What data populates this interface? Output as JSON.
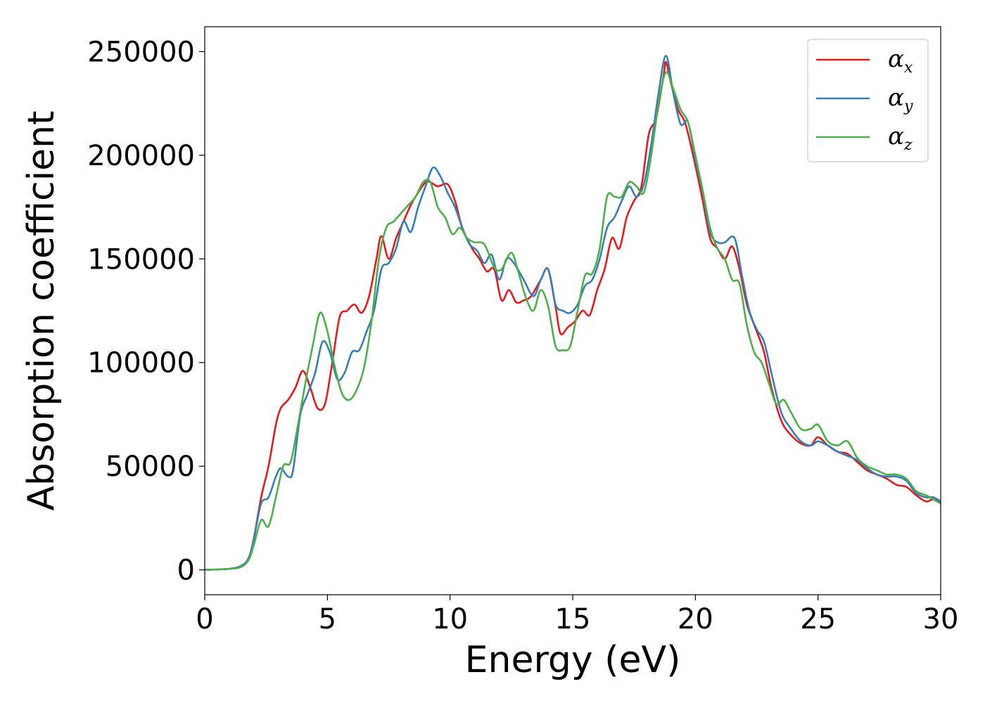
{
  "chart_data": {
    "type": "line",
    "xlabel": "Energy (eV)",
    "ylabel": "Absorption coefficient",
    "xlim": [
      0,
      30
    ],
    "ylim": [
      -12000,
      262000
    ],
    "xticks": [
      0,
      5,
      10,
      15,
      20,
      25,
      30
    ],
    "yticks": [
      0,
      50000,
      100000,
      150000,
      200000,
      250000
    ],
    "grid": false,
    "legend_position": "top-right",
    "series": [
      {
        "name": "α_x",
        "symbol": "α",
        "subscript": "x",
        "color": "#e41a1c",
        "points": [
          [
            0,
            0
          ],
          [
            1,
            500
          ],
          [
            1.5,
            2000
          ],
          [
            1.8,
            6000
          ],
          [
            2,
            15000
          ],
          [
            2.3,
            35000
          ],
          [
            2.6,
            50000
          ],
          [
            2.9,
            70000
          ],
          [
            3.1,
            78000
          ],
          [
            3.4,
            82000
          ],
          [
            3.7,
            88000
          ],
          [
            4,
            96000
          ],
          [
            4.3,
            88000
          ],
          [
            4.6,
            78000
          ],
          [
            4.9,
            80000
          ],
          [
            5.2,
            100000
          ],
          [
            5.5,
            122000
          ],
          [
            5.8,
            125000
          ],
          [
            6.1,
            128000
          ],
          [
            6.4,
            124000
          ],
          [
            6.7,
            132000
          ],
          [
            7,
            150000
          ],
          [
            7.2,
            161000
          ],
          [
            7.5,
            150000
          ],
          [
            7.8,
            160000
          ],
          [
            8.1,
            168000
          ],
          [
            8.4,
            176000
          ],
          [
            8.7,
            182000
          ],
          [
            9,
            187000
          ],
          [
            9.2,
            187000
          ],
          [
            9.5,
            185000
          ],
          [
            9.9,
            186000
          ],
          [
            10.2,
            178000
          ],
          [
            10.5,
            165000
          ],
          [
            10.9,
            155000
          ],
          [
            11.2,
            150000
          ],
          [
            11.5,
            144000
          ],
          [
            11.8,
            145000
          ],
          [
            12.1,
            130000
          ],
          [
            12.4,
            135000
          ],
          [
            12.7,
            129000
          ],
          [
            13,
            130000
          ],
          [
            13.3,
            132000
          ],
          [
            13.7,
            140000
          ],
          [
            14,
            145000
          ],
          [
            14.3,
            127000
          ],
          [
            14.5,
            114000
          ],
          [
            14.8,
            117000
          ],
          [
            15.1,
            120000
          ],
          [
            15.4,
            125000
          ],
          [
            15.7,
            123000
          ],
          [
            16,
            135000
          ],
          [
            16.3,
            145000
          ],
          [
            16.6,
            160000
          ],
          [
            16.9,
            155000
          ],
          [
            17.2,
            170000
          ],
          [
            17.5,
            178000
          ],
          [
            17.8,
            185000
          ],
          [
            18.1,
            210000
          ],
          [
            18.4,
            218000
          ],
          [
            18.7,
            238000
          ],
          [
            18.8,
            245000
          ],
          [
            19,
            235000
          ],
          [
            19.3,
            222000
          ],
          [
            19.6,
            215000
          ],
          [
            20,
            195000
          ],
          [
            20.3,
            178000
          ],
          [
            20.6,
            160000
          ],
          [
            20.9,
            155000
          ],
          [
            21.2,
            150000
          ],
          [
            21.5,
            156000
          ],
          [
            21.8,
            145000
          ],
          [
            22.1,
            128000
          ],
          [
            22.5,
            115000
          ],
          [
            22.8,
            105000
          ],
          [
            23.1,
            88000
          ],
          [
            23.5,
            72000
          ],
          [
            23.9,
            65000
          ],
          [
            24.3,
            61000
          ],
          [
            24.7,
            60000
          ],
          [
            25,
            64000
          ],
          [
            25.4,
            60000
          ],
          [
            25.8,
            57000
          ],
          [
            26.2,
            56000
          ],
          [
            26.6,
            52000
          ],
          [
            27,
            48000
          ],
          [
            27.4,
            46000
          ],
          [
            27.8,
            44000
          ],
          [
            28.2,
            41000
          ],
          [
            28.6,
            40000
          ],
          [
            29,
            36000
          ],
          [
            29.4,
            33000
          ],
          [
            29.7,
            34000
          ],
          [
            30,
            32000
          ]
        ]
      },
      {
        "name": "α_y",
        "symbol": "α",
        "subscript": "y",
        "color": "#377eb8",
        "points": [
          [
            0,
            0
          ],
          [
            1,
            500
          ],
          [
            1.5,
            2000
          ],
          [
            1.8,
            6000
          ],
          [
            2,
            15000
          ],
          [
            2.3,
            32000
          ],
          [
            2.6,
            35000
          ],
          [
            2.9,
            45000
          ],
          [
            3.1,
            49000
          ],
          [
            3.4,
            45000
          ],
          [
            3.6,
            48000
          ],
          [
            3.9,
            75000
          ],
          [
            4.2,
            85000
          ],
          [
            4.5,
            95000
          ],
          [
            4.8,
            110000
          ],
          [
            5.1,
            105000
          ],
          [
            5.4,
            92000
          ],
          [
            5.7,
            95000
          ],
          [
            6,
            105000
          ],
          [
            6.3,
            106000
          ],
          [
            6.6,
            115000
          ],
          [
            6.9,
            125000
          ],
          [
            7.2,
            145000
          ],
          [
            7.5,
            148000
          ],
          [
            7.8,
            155000
          ],
          [
            8.1,
            168000
          ],
          [
            8.4,
            163000
          ],
          [
            8.7,
            175000
          ],
          [
            9,
            185000
          ],
          [
            9.3,
            194000
          ],
          [
            9.6,
            190000
          ],
          [
            9.9,
            182000
          ],
          [
            10.2,
            175000
          ],
          [
            10.5,
            165000
          ],
          [
            10.8,
            157000
          ],
          [
            11.1,
            154000
          ],
          [
            11.4,
            148000
          ],
          [
            11.7,
            152000
          ],
          [
            12,
            140000
          ],
          [
            12.3,
            150000
          ],
          [
            12.6,
            148000
          ],
          [
            13,
            140000
          ],
          [
            13.4,
            132000
          ],
          [
            13.7,
            140000
          ],
          [
            14,
            145000
          ],
          [
            14.3,
            128000
          ],
          [
            14.6,
            125000
          ],
          [
            14.9,
            124000
          ],
          [
            15.2,
            128000
          ],
          [
            15.5,
            137000
          ],
          [
            15.8,
            140000
          ],
          [
            16.1,
            150000
          ],
          [
            16.4,
            165000
          ],
          [
            16.7,
            170000
          ],
          [
            17,
            178000
          ],
          [
            17.3,
            185000
          ],
          [
            17.6,
            180000
          ],
          [
            17.9,
            186000
          ],
          [
            18.2,
            205000
          ],
          [
            18.5,
            230000
          ],
          [
            18.8,
            248000
          ],
          [
            19.1,
            230000
          ],
          [
            19.4,
            215000
          ],
          [
            19.7,
            216000
          ],
          [
            20,
            198000
          ],
          [
            20.3,
            182000
          ],
          [
            20.6,
            163000
          ],
          [
            20.9,
            158000
          ],
          [
            21.2,
            158000
          ],
          [
            21.6,
            160000
          ],
          [
            21.9,
            142000
          ],
          [
            22.2,
            125000
          ],
          [
            22.5,
            116000
          ],
          [
            22.8,
            110000
          ],
          [
            23.1,
            95000
          ],
          [
            23.5,
            76000
          ],
          [
            23.9,
            68000
          ],
          [
            24.3,
            62000
          ],
          [
            24.7,
            60000
          ],
          [
            25,
            62000
          ],
          [
            25.4,
            60000
          ],
          [
            25.8,
            57000
          ],
          [
            26.2,
            55000
          ],
          [
            26.6,
            53000
          ],
          [
            27,
            49000
          ],
          [
            27.4,
            46000
          ],
          [
            27.8,
            45000
          ],
          [
            28.2,
            45000
          ],
          [
            28.6,
            43000
          ],
          [
            29,
            37000
          ],
          [
            29.4,
            35000
          ],
          [
            29.7,
            35000
          ],
          [
            30,
            33000
          ]
        ]
      },
      {
        "name": "α_z",
        "symbol": "α",
        "subscript": "z",
        "color": "#4daf4a",
        "points": [
          [
            0,
            0
          ],
          [
            1,
            500
          ],
          [
            1.5,
            1500
          ],
          [
            1.8,
            5000
          ],
          [
            2,
            12000
          ],
          [
            2.3,
            24000
          ],
          [
            2.6,
            21000
          ],
          [
            2.9,
            35000
          ],
          [
            3.2,
            50000
          ],
          [
            3.5,
            52000
          ],
          [
            3.8,
            70000
          ],
          [
            4.1,
            90000
          ],
          [
            4.4,
            108000
          ],
          [
            4.7,
            124000
          ],
          [
            5,
            115000
          ],
          [
            5.3,
            98000
          ],
          [
            5.6,
            85000
          ],
          [
            5.9,
            82000
          ],
          [
            6.2,
            87000
          ],
          [
            6.5,
            98000
          ],
          [
            6.8,
            120000
          ],
          [
            7.1,
            150000
          ],
          [
            7.4,
            165000
          ],
          [
            7.7,
            168000
          ],
          [
            8,
            172000
          ],
          [
            8.3,
            176000
          ],
          [
            8.6,
            180000
          ],
          [
            8.9,
            187000
          ],
          [
            9.2,
            187000
          ],
          [
            9.5,
            175000
          ],
          [
            9.8,
            170000
          ],
          [
            10.1,
            162000
          ],
          [
            10.4,
            165000
          ],
          [
            10.7,
            160000
          ],
          [
            11,
            158000
          ],
          [
            11.4,
            157000
          ],
          [
            11.8,
            146000
          ],
          [
            12.1,
            145000
          ],
          [
            12.5,
            153000
          ],
          [
            12.8,
            143000
          ],
          [
            13.1,
            131000
          ],
          [
            13.4,
            125000
          ],
          [
            13.7,
            135000
          ],
          [
            14,
            127000
          ],
          [
            14.3,
            108000
          ],
          [
            14.6,
            106000
          ],
          [
            14.9,
            108000
          ],
          [
            15.2,
            125000
          ],
          [
            15.5,
            142000
          ],
          [
            15.8,
            143000
          ],
          [
            16.1,
            155000
          ],
          [
            16.4,
            180000
          ],
          [
            16.7,
            180000
          ],
          [
            17,
            180000
          ],
          [
            17.3,
            187000
          ],
          [
            17.6,
            185000
          ],
          [
            17.9,
            182000
          ],
          [
            18.2,
            200000
          ],
          [
            18.5,
            225000
          ],
          [
            18.8,
            240000
          ],
          [
            19.1,
            232000
          ],
          [
            19.4,
            222000
          ],
          [
            19.7,
            216000
          ],
          [
            20,
            200000
          ],
          [
            20.3,
            183000
          ],
          [
            20.6,
            165000
          ],
          [
            20.9,
            155000
          ],
          [
            21.2,
            150000
          ],
          [
            21.5,
            140000
          ],
          [
            21.8,
            138000
          ],
          [
            22.1,
            118000
          ],
          [
            22.4,
            105000
          ],
          [
            22.7,
            100000
          ],
          [
            23,
            90000
          ],
          [
            23.3,
            80000
          ],
          [
            23.6,
            82000
          ],
          [
            23.9,
            76000
          ],
          [
            24.3,
            68000
          ],
          [
            24.7,
            68000
          ],
          [
            25,
            70000
          ],
          [
            25.4,
            62000
          ],
          [
            25.8,
            60000
          ],
          [
            26.2,
            62000
          ],
          [
            26.6,
            54000
          ],
          [
            27,
            50000
          ],
          [
            27.4,
            48000
          ],
          [
            27.8,
            46000
          ],
          [
            28.2,
            46000
          ],
          [
            28.6,
            44000
          ],
          [
            29,
            38000
          ],
          [
            29.4,
            36000
          ],
          [
            29.7,
            34000
          ],
          [
            30,
            32000
          ]
        ]
      }
    ]
  }
}
